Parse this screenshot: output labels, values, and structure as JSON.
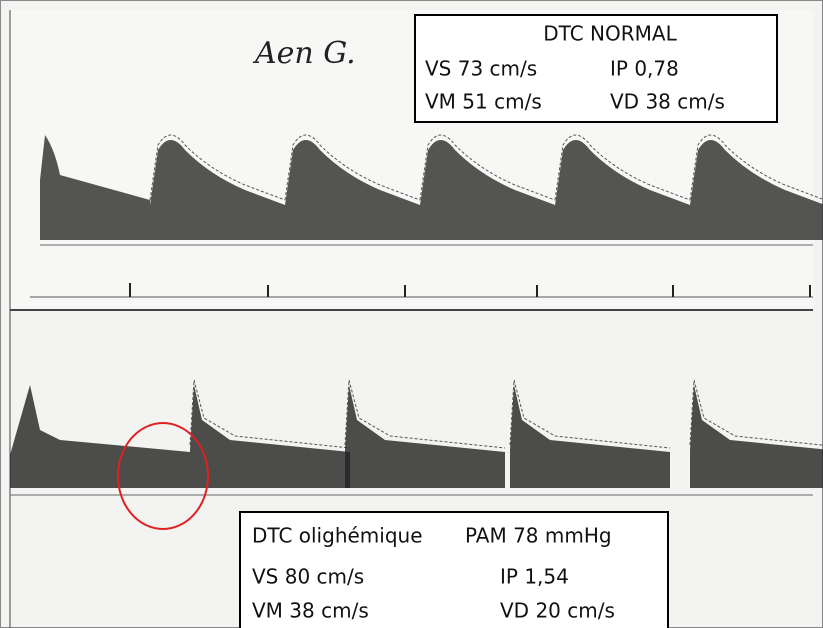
{
  "annotation": "Aen G.",
  "normal": {
    "title": "DTC NORMAL",
    "rows": [
      [
        "VS  73 cm/s",
        "IP  0,78"
      ],
      [
        "VM 51 cm/s",
        "VD 38 cm/s"
      ]
    ]
  },
  "oligemic": {
    "title": "DTC olighémique",
    "pressure": "PAM 78 mmHg",
    "rows": [
      [
        "VS  80 cm/s",
        "IP   1,54"
      ],
      [
        "VM 38 cm/s",
        "VD 20 cm/s"
      ]
    ]
  }
}
